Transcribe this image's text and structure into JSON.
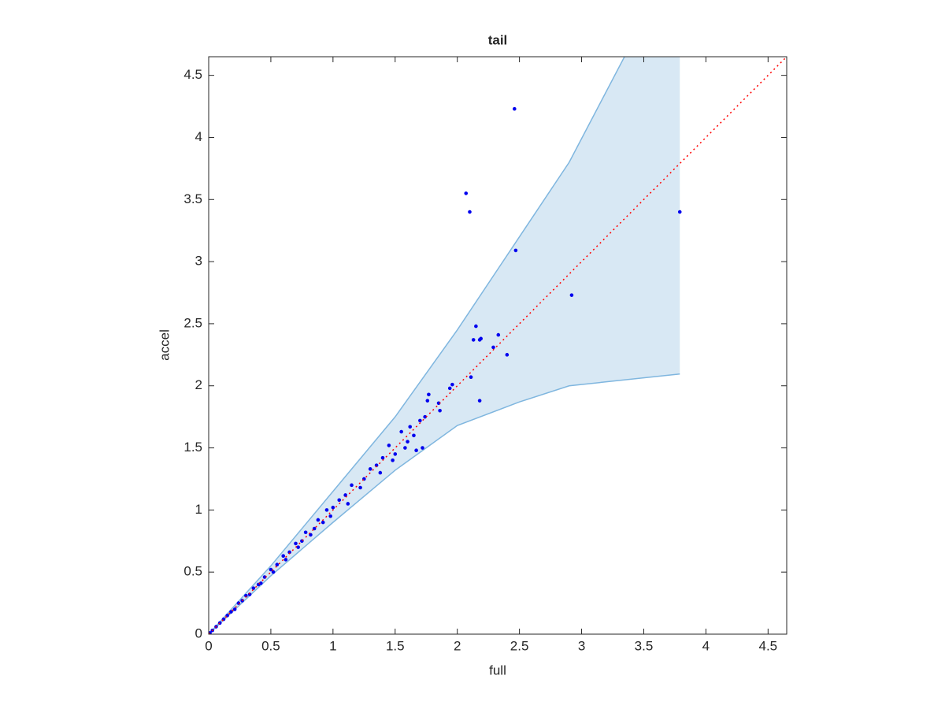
{
  "chart_data": {
    "type": "scatter",
    "title": "tail",
    "xlabel": "full",
    "ylabel": "accel",
    "xlim": [
      0,
      4.65
    ],
    "ylim": [
      0,
      4.65
    ],
    "xticks": [
      0,
      0.5,
      1,
      1.5,
      2,
      2.5,
      3,
      3.5,
      4,
      4.5
    ],
    "yticks": [
      0,
      0.5,
      1,
      1.5,
      2,
      2.5,
      3,
      3.5,
      4,
      4.5
    ],
    "color": "#0000ee",
    "x": [
      2.46,
      2.07,
      2.1,
      2.47,
      3.79,
      2.92,
      2.15,
      2.13,
      2.19,
      2.18,
      2.33,
      2.29,
      2.4,
      2.11,
      2.18,
      1.96,
      1.94,
      1.77,
      1.76,
      1.85,
      1.86,
      1.72,
      1.67,
      1.74,
      1.7,
      1.62,
      1.65,
      1.55,
      1.6,
      1.58,
      1.5,
      1.45,
      1.48,
      1.4,
      1.35,
      1.38,
      1.3,
      1.25,
      1.22,
      1.15,
      1.1,
      1.12,
      1.05,
      1.0,
      0.98,
      0.95,
      0.92,
      0.88,
      0.85,
      0.82,
      0.78,
      0.75,
      0.72,
      0.7,
      0.65,
      0.62,
      0.6,
      0.55,
      0.52,
      0.5,
      0.45,
      0.42,
      0.4,
      0.36,
      0.33,
      0.3,
      0.27,
      0.24,
      0.21,
      0.18,
      0.15,
      0.12,
      0.09,
      0.06,
      0.03,
      0.01
    ],
    "values": [
      4.23,
      3.55,
      3.4,
      3.09,
      3.4,
      2.73,
      2.48,
      2.37,
      2.38,
      2.37,
      2.41,
      2.31,
      2.25,
      2.07,
      1.88,
      2.01,
      1.98,
      1.93,
      1.88,
      1.86,
      1.8,
      1.5,
      1.48,
      1.75,
      1.72,
      1.67,
      1.6,
      1.63,
      1.55,
      1.5,
      1.45,
      1.52,
      1.4,
      1.42,
      1.36,
      1.3,
      1.33,
      1.25,
      1.18,
      1.2,
      1.12,
      1.05,
      1.08,
      1.02,
      0.95,
      1.0,
      0.9,
      0.92,
      0.85,
      0.8,
      0.82,
      0.75,
      0.7,
      0.73,
      0.66,
      0.6,
      0.63,
      0.56,
      0.5,
      0.52,
      0.46,
      0.41,
      0.4,
      0.37,
      0.32,
      0.31,
      0.27,
      0.25,
      0.2,
      0.18,
      0.15,
      0.12,
      0.09,
      0.06,
      0.03,
      0.01
    ],
    "band": {
      "x": [
        0,
        0.5,
        1,
        1.5,
        2,
        2.5,
        2.9,
        3.79
      ],
      "lower": [
        0,
        0.47,
        0.9,
        1.32,
        1.68,
        1.87,
        2.0,
        2.095
      ],
      "upper": [
        0,
        0.55,
        1.15,
        1.75,
        2.45,
        3.2,
        3.8,
        5.5
      ],
      "fill": "#d8e8f4",
      "color": "#7fb6df"
    },
    "reference": {
      "x": [
        0,
        4.65
      ],
      "values": [
        0,
        4.65
      ],
      "color": "#ff0000"
    }
  }
}
